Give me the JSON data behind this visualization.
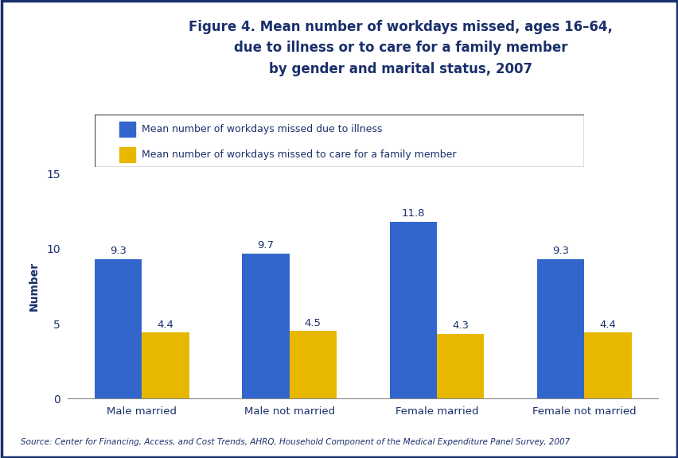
{
  "title_line1": "Figure 4. Mean number of workdays missed, ages 16–64,",
  "title_line2": "due to illness or to care for a family member",
  "title_line3": "by gender and marital status, 2007",
  "categories": [
    "Male married",
    "Male not married",
    "Female married",
    "Female not married"
  ],
  "illness_values": [
    9.3,
    9.7,
    11.8,
    9.3
  ],
  "care_values": [
    4.4,
    4.5,
    4.3,
    4.4
  ],
  "bar_color_illness": "#3366CC",
  "bar_color_care": "#E8B800",
  "ylabel": "Number",
  "ylim": [
    0,
    15
  ],
  "yticks": [
    0,
    5,
    10,
    15
  ],
  "legend_illness": "Mean number of workdays missed due to illness",
  "legend_care": "Mean number of workdays missed to care for a family member",
  "source_text": "Source: Center for Financing, Access, and Cost Trends, AHRQ, Household Component of the Medical Expenditure Panel Survey, 2007",
  "title_color": "#1A2F6B",
  "divider_color": "#1A2F6B",
  "border_color": "#1A2F6B",
  "figure_bg": "#FFFFFF",
  "bar_width": 0.32
}
